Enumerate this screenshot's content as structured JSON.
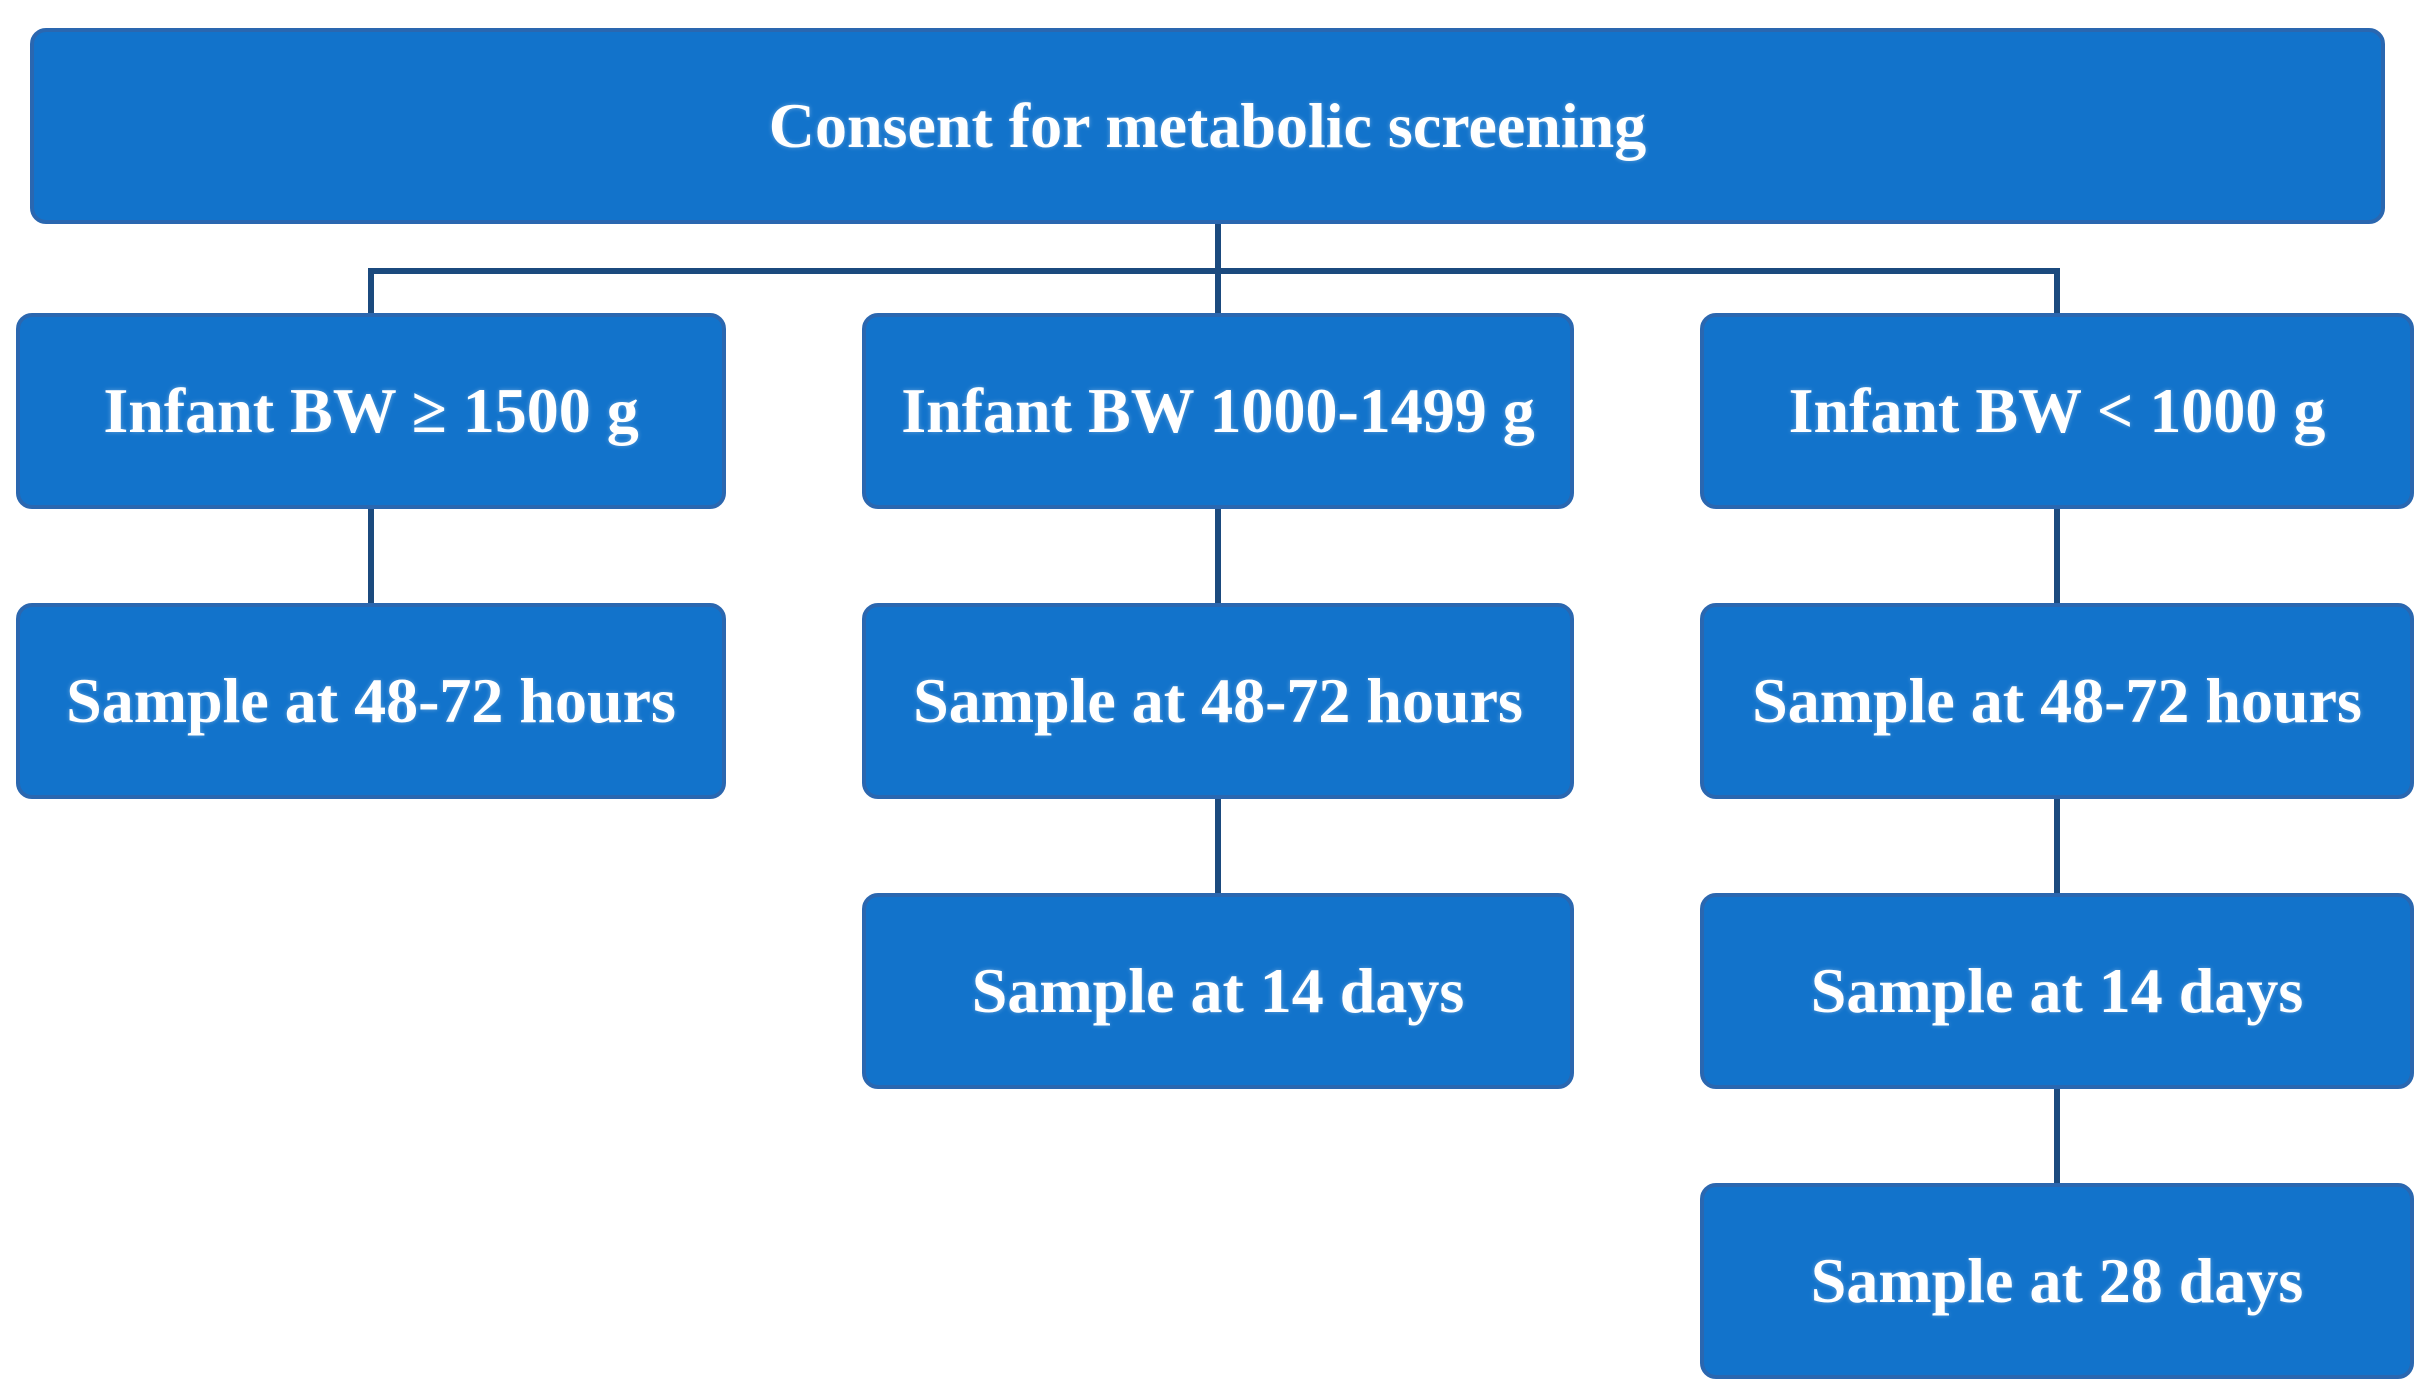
{
  "flowchart": {
    "title_node": {
      "label": "Consent for metabolic screening"
    },
    "branches": [
      {
        "condition": "Infant BW ≥ 1500 g",
        "steps": [
          "Sample at 48-72 hours"
        ]
      },
      {
        "condition": "Infant BW 1000-1499 g",
        "steps": [
          "Sample at 48-72 hours",
          "Sample at 14 days"
        ]
      },
      {
        "condition": "Infant BW < 1000 g",
        "steps": [
          "Sample at 48-72 hours",
          "Sample at 14 days",
          "Sample at 28 days"
        ]
      }
    ],
    "colors": {
      "box_fill": "#1273cb",
      "box_border": "#2a67b0",
      "connector": "#1b4a7e",
      "text": "#ffffff",
      "background": "#ffffff"
    }
  }
}
